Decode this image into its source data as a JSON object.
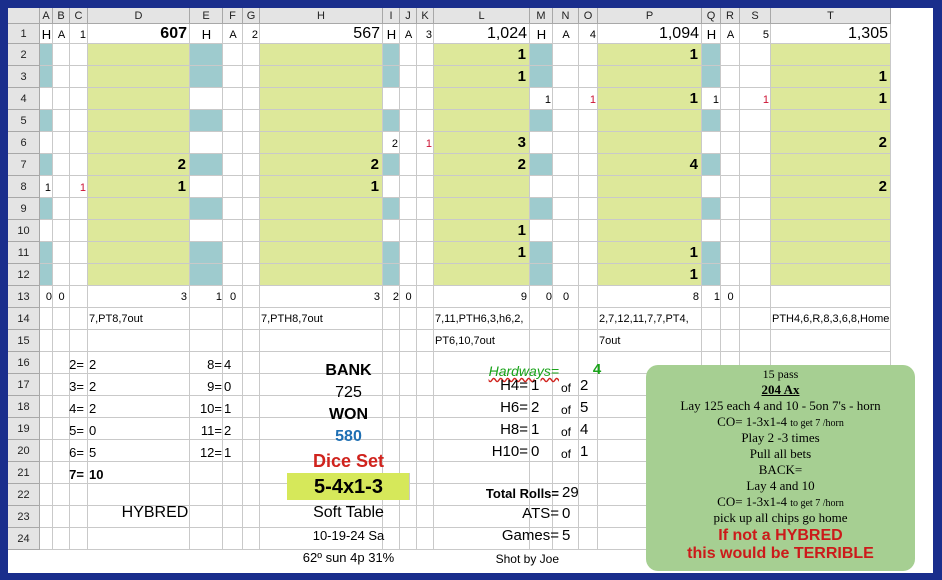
{
  "columns": [
    "A",
    "B",
    "C",
    "D",
    "E",
    "F",
    "G",
    "H",
    "I",
    "J",
    "K",
    "L",
    "M",
    "N",
    "O",
    "P",
    "Q",
    "R",
    "S",
    "T"
  ],
  "rows": [
    "1",
    "2",
    "3",
    "4",
    "5",
    "6",
    "7",
    "8",
    "9",
    "10",
    "11",
    "12",
    "13",
    "14",
    "15",
    "16",
    "17",
    "18",
    "19",
    "20",
    "21",
    "22",
    "23",
    "24"
  ],
  "games": [
    {
      "hardway_flag": "H",
      "aces_flag": "A",
      "game_no": "1",
      "total": "607",
      "row_values": {
        "7": "2",
        "8": "1"
      },
      "h_counts": {
        "8": "1"
      },
      "a_counts": {
        "8": "1"
      },
      "row13": {
        "h": "0",
        "a": "0",
        "c": "3"
      },
      "rolls": "7,PT8,7out"
    },
    {
      "hardway_flag": "H",
      "aces_flag": "A",
      "game_no": "2",
      "total": "567",
      "row_values": {
        "7": "2",
        "8": "1"
      },
      "row13": {
        "h": "1",
        "a": "0",
        "c": "3"
      },
      "rolls": "7,PTH8,7out"
    },
    {
      "hardway_flag": "H",
      "aces_flag": "A",
      "game_no": "3",
      "total": "1,024",
      "row_values": {
        "2": "1",
        "3": "1",
        "6": "3",
        "7": "2",
        "10": "1",
        "11": "1"
      },
      "h_counts": {
        "6": "2"
      },
      "a_counts": {
        "6": "1"
      },
      "row13": {
        "h": "2",
        "a": "0",
        "c": "9"
      },
      "rolls": "7,11,PTH6,3,h6,2,",
      "rolls2": "PT6,10,7out"
    },
    {
      "hardway_flag": "H",
      "aces_flag": "A",
      "game_no": "4",
      "total": "1,094",
      "row_values": {
        "2": "1",
        "4": "1",
        "7": "4",
        "11": "1",
        "12": "1"
      },
      "h_counts": {
        "4": "1"
      },
      "a_counts": {
        "4": "1"
      },
      "row13": {
        "h": "0",
        "a": "0",
        "c": "8"
      },
      "rolls": "2,7,12,11,7,7,PT4,",
      "rolls2": "7out"
    },
    {
      "hardway_flag": "H",
      "aces_flag": "A",
      "game_no": "5",
      "total": "1,305",
      "row_values": {
        "3": "1",
        "4": "1",
        "6": "2",
        "8": "2"
      },
      "h_counts": {
        "4": "1"
      },
      "a_counts": {
        "4": "1"
      },
      "row13": {
        "h": "1",
        "a": "0",
        "c": ""
      },
      "rolls": "PTH4,6,R,8,3,6,8,Home"
    }
  ],
  "dice_counts": {
    "left": [
      {
        "label": "2=",
        "value": "2"
      },
      {
        "label": "3=",
        "value": "2"
      },
      {
        "label": "4=",
        "value": "2"
      },
      {
        "label": "5=",
        "value": "0"
      },
      {
        "label": "6=",
        "value": "5"
      }
    ],
    "seven": {
      "label": "7=",
      "value": "10"
    },
    "right": [
      {
        "label": "8=",
        "value": "4"
      },
      {
        "label": "9=",
        "value": "0"
      },
      {
        "label": "10=",
        "value": "1"
      },
      {
        "label": "11=",
        "value": "2"
      },
      {
        "label": "12=",
        "value": "1"
      }
    ]
  },
  "summary": {
    "bank_label": "BANK",
    "bank_value": "725",
    "won_label": "WON",
    "won_value": "580",
    "dice_set_label": "Dice Set",
    "dice_set_value": "5-4x1-3",
    "table": "Soft Table",
    "date": "10-19-24 Sa",
    "weather": "62º sun 4p 31%",
    "hybred": "HYBRED"
  },
  "hardways": {
    "label": "Hardways=",
    "value": "4",
    "items": [
      {
        "label": "H4=",
        "value": "1",
        "of": "of",
        "total": "2"
      },
      {
        "label": "H6=",
        "value": "2",
        "of": "of",
        "total": "5"
      },
      {
        "label": "H8=",
        "value": "1",
        "of": "of",
        "total": "4"
      },
      {
        "label": "H10=",
        "value": "0",
        "of": "of",
        "total": "1"
      }
    ],
    "total_rolls_label": "Total Rolls=",
    "total_rolls": "29",
    "ats_label": "ATS=",
    "ats": "0",
    "games_label": "Games=",
    "games": "5",
    "shooter": "Shot by Joe"
  },
  "note": {
    "line1": "15 pass",
    "line2": "204 Ax",
    "line3": "Lay  125 each 4 and 10 - 5on 7's - horn",
    "line4a": "CO= 1-3x1-4 ",
    "line4b": "to get 7 /horn",
    "line5": "Play 2 -3 times",
    "line6": "Pull all bets",
    "line7": "BACK=",
    "line8": "Lay 4 and 10",
    "line9a": "CO= 1-3x1-4 ",
    "line9b": "to get 7 /horn",
    "line10": "pick up all chips go home",
    "line11": "If not a HYBRED",
    "line12": "this would be TERRIBLE"
  },
  "colors": {
    "green": "#dde89a",
    "teal": "#9ecbce",
    "header": "#e4e4e4",
    "note": "#a6cf92",
    "won": "#1e6fb3",
    "red": "#d0231d",
    "hardway_green": "#19a319",
    "note_red": "#cc1a1a"
  }
}
